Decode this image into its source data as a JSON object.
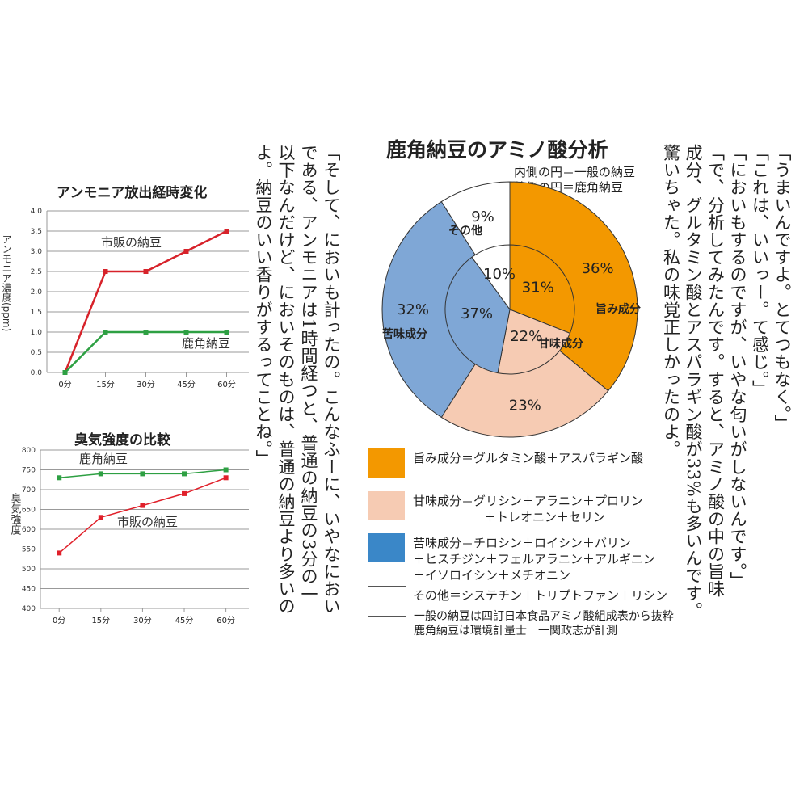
{
  "chart_data": [
    {
      "type": "line",
      "title": "アンモニア放出経時変化",
      "ylabel": "アンモニア濃度(ppm)",
      "xlabel": "",
      "categories": [
        "0分",
        "15分",
        "30分",
        "45分",
        "60分"
      ],
      "ylim": [
        0,
        4.0
      ],
      "yticks": [
        "0.0",
        "0.5",
        "1.0",
        "1.5",
        "2.0",
        "2.5",
        "3.0",
        "3.5",
        "4.0"
      ],
      "grid": true,
      "series": [
        {
          "name": "市販の納豆",
          "color": "#d7222a",
          "values": [
            0,
            2.5,
            2.5,
            3.0,
            3.5
          ]
        },
        {
          "name": "鹿角納豆",
          "color": "#2ea043",
          "values": [
            0,
            1.0,
            1.0,
            1.0,
            1.0
          ]
        }
      ]
    },
    {
      "type": "line",
      "title": "臭気強度の比較",
      "ylabel": "臭気強度",
      "xlabel": "",
      "categories": [
        "0分",
        "15分",
        "30分",
        "45分",
        "60分"
      ],
      "ylim": [
        400,
        800
      ],
      "yticks": [
        "400",
        "450",
        "500",
        "550",
        "600",
        "650",
        "700",
        "750",
        "800"
      ],
      "grid": true,
      "series": [
        {
          "name": "鹿角納豆",
          "color": "#2ea043",
          "values": [
            730,
            740,
            740,
            740,
            750
          ]
        },
        {
          "name": "市販の納豆",
          "color": "#e0202a",
          "values": [
            540,
            630,
            660,
            690,
            730
          ]
        }
      ]
    },
    {
      "type": "pie",
      "title": "鹿角納豆のアミノ酸分析",
      "note_inner": "内側の円＝一般の納豆",
      "note_outer": "外側の円＝鹿角納豆",
      "categories": [
        "旨み成分",
        "甘味成分",
        "苦味成分",
        "その他"
      ],
      "colors": [
        "#f39800",
        "#f6cbb3",
        "#7fa7d6",
        "#ffffff"
      ],
      "outer": {
        "name": "鹿角納豆",
        "values": [
          36,
          23,
          32,
          9
        ],
        "labels": [
          "36%",
          "23%",
          "32%",
          "9%"
        ]
      },
      "inner": {
        "name": "一般の納豆",
        "values": [
          31,
          22,
          37,
          10
        ],
        "labels": [
          "31%",
          "22%",
          "37%",
          "10%"
        ]
      }
    }
  ],
  "legend": [
    {
      "color": "#f39800",
      "lines": [
        "旨み成分＝グルタミン酸＋アスパラギン酸"
      ]
    },
    {
      "color": "#f6cbb3",
      "lines": [
        "甘味成分＝グリシン＋アラニン＋プロリン",
        "＋トレオニン＋セリン"
      ]
    },
    {
      "color": "#3a87c8",
      "lines": [
        "苦味成分＝チロシン＋ロイシン＋バリン",
        "＋ヒスチジン＋フェルアラニン＋アルギニン",
        "＋イソロイシン＋メチオニン"
      ]
    },
    {
      "color": "#ffffff",
      "lines": [
        "その他＝システチン＋トリプトファン＋リシン"
      ]
    }
  ],
  "sources": [
    "一般の納豆は四訂日本食品アミノ酸組成表から抜粋",
    "鹿角納豆は環境計量士　一関政志が計測"
  ],
  "middle_text": [
    "「そして、においも計ったの。こんなふーに、いやなにおい",
    "である、アンモニアは1時間経つと、普通の納豆の3分の一",
    "以下なんだけど、においそのものは、普通の納豆より多いの",
    "よ。納豆のいい香りがするってことね。」"
  ],
  "right_text": [
    "「うまいんですよ。とてつもなく。」",
    "「これは、いいっー。て感じ。」",
    "「においもするのですが、いやな匂いがしないんです。」",
    "「で、分析してみたんです。すると、アミノ酸の中の旨味",
    "成分、グルタミン酸とアスパラギン酸が33%も多いんです。",
    "驚いちゃた。私の味覚正しかったのよ。"
  ]
}
